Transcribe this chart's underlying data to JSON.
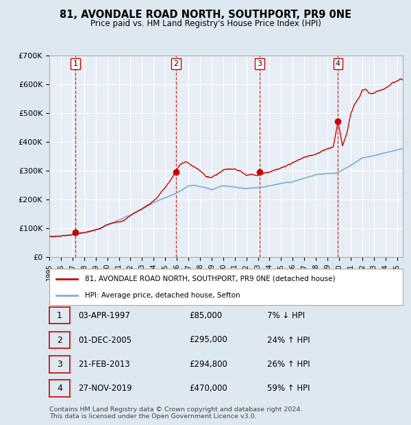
{
  "title": "81, AVONDALE ROAD NORTH, SOUTHPORT, PR9 0NE",
  "subtitle": "Price paid vs. HM Land Registry's House Price Index (HPI)",
  "footer": "Contains HM Land Registry data © Crown copyright and database right 2024.\nThis data is licensed under the Open Government Licence v3.0.",
  "legend_line1": "81, AVONDALE ROAD NORTH, SOUTHPORT, PR9 0NE (detached house)",
  "legend_line2": "HPI: Average price, detached house, Sefton",
  "sales": [
    {
      "num": 1,
      "date": "03-APR-1997",
      "price": 85000,
      "pct": "7%",
      "dir": "↓"
    },
    {
      "num": 2,
      "date": "01-DEC-2005",
      "price": 295000,
      "pct": "24%",
      "dir": "↑"
    },
    {
      "num": 3,
      "date": "21-FEB-2013",
      "price": 294800,
      "pct": "26%",
      "dir": "↑"
    },
    {
      "num": 4,
      "date": "27-NOV-2019",
      "price": 470000,
      "pct": "59%",
      "dir": "↑"
    }
  ],
  "sale_dates_decimal": [
    1997.25,
    2005.92,
    2013.13,
    2019.91
  ],
  "hpi_color": "#7aaed6",
  "price_color": "#cc0000",
  "bg_color": "#dde8f0",
  "plot_bg": "#e8eef5",
  "grid_color": "#ffffff",
  "dashed_line_color": "#cc0000",
  "ylim": [
    0,
    700000
  ],
  "xlim_start": 1995.0,
  "xlim_end": 2025.5,
  "yticks": [
    0,
    100000,
    200000,
    300000,
    400000,
    500000,
    600000,
    700000
  ],
  "ytick_labels": [
    "£0",
    "£100K",
    "£200K",
    "£300K",
    "£400K",
    "£500K",
    "£600K",
    "£700K"
  ],
  "xticks": [
    1995,
    1996,
    1997,
    1998,
    1999,
    2000,
    2001,
    2002,
    2003,
    2004,
    2005,
    2006,
    2007,
    2008,
    2009,
    2010,
    2011,
    2012,
    2013,
    2014,
    2015,
    2016,
    2017,
    2018,
    2019,
    2020,
    2021,
    2022,
    2023,
    2024,
    2025
  ]
}
